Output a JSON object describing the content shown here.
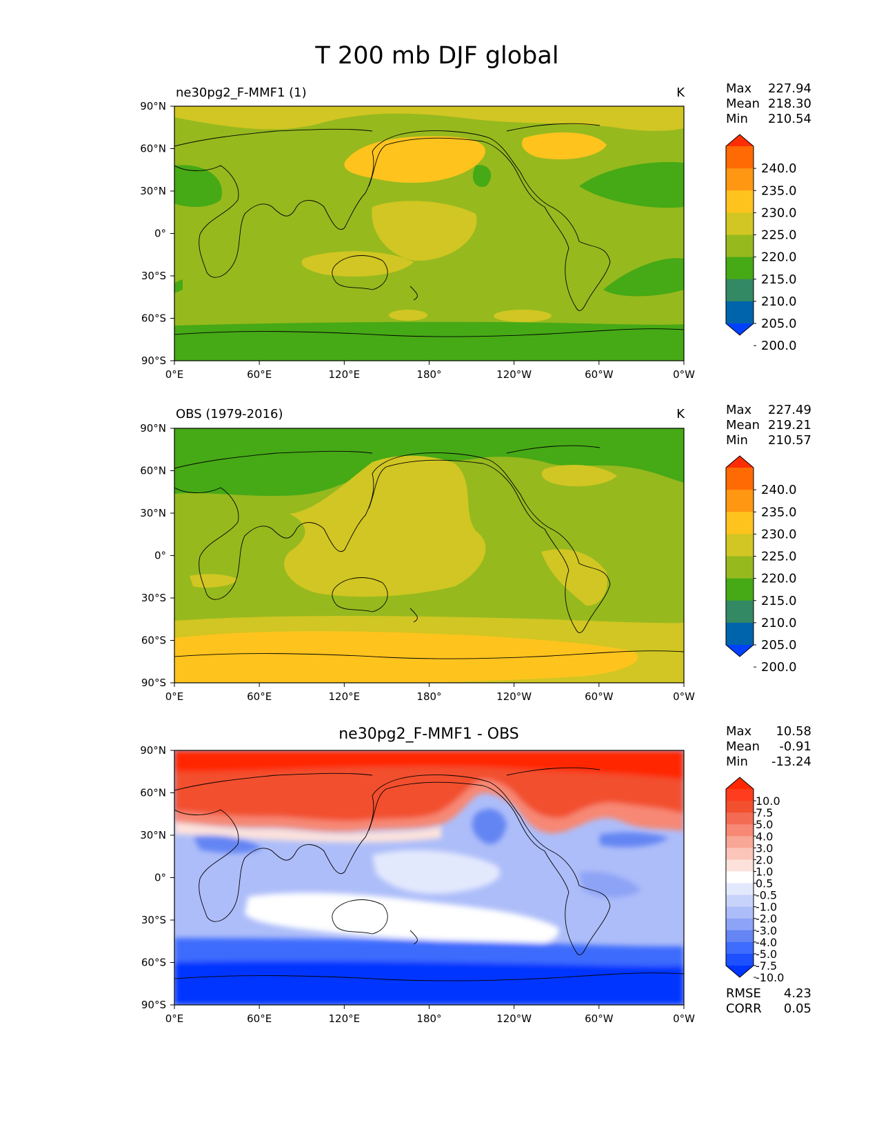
{
  "figure": {
    "title": "T 200 mb DJF global"
  },
  "axes": {
    "lat_ticks": [
      "90°N",
      "60°N",
      "30°N",
      "0°",
      "30°S",
      "60°S",
      "90°S"
    ],
    "lon_ticks": [
      "0°E",
      "60°E",
      "120°E",
      "180°",
      "120°W",
      "60°W",
      "0°W"
    ]
  },
  "colors": {
    "abs_levels": [
      "#0041ff",
      "#0064aa",
      "#328963",
      "#46a916",
      "#96b91e",
      "#d1c623",
      "#ffc31e",
      "#ff9713",
      "#ff6a05",
      "#ff2d05"
    ],
    "diff_levels": [
      "#0035ff",
      "#1d50ff",
      "#3e6cfd",
      "#6485f3",
      "#8da3f6",
      "#adbdf9",
      "#c8d3fb",
      "#e3e9fd",
      "#ffffff",
      "#fde2dc",
      "#fbc5b9",
      "#f8a696",
      "#f68875",
      "#f46b54",
      "#f2502f",
      "#ff3c1e",
      "#ff2800"
    ]
  },
  "chart_data": [
    {
      "type": "heatmap",
      "panel": "model",
      "title_left": "ne30pg2_F-MMF1 (1)",
      "title_right": "K",
      "stats": [
        {
          "label": "Max",
          "value": "227.94"
        },
        {
          "label": "Mean",
          "value": "218.30"
        },
        {
          "label": "Min",
          "value": "210.54"
        }
      ],
      "colorbar_levels": [
        "240.0",
        "235.0",
        "230.0",
        "225.0",
        "220.0",
        "215.0",
        "210.0",
        "205.0",
        "200.0"
      ],
      "xlim": [
        0,
        360
      ],
      "ylim": [
        -90,
        90
      ]
    },
    {
      "type": "heatmap",
      "panel": "obs",
      "title_left": "OBS (1979-2016)",
      "title_right": "K",
      "stats": [
        {
          "label": "Max",
          "value": "227.49"
        },
        {
          "label": "Mean",
          "value": "219.21"
        },
        {
          "label": "Min",
          "value": "210.57"
        }
      ],
      "colorbar_levels": [
        "240.0",
        "235.0",
        "230.0",
        "225.0",
        "220.0",
        "215.0",
        "210.0",
        "205.0",
        "200.0"
      ],
      "xlim": [
        0,
        360
      ],
      "ylim": [
        -90,
        90
      ]
    },
    {
      "type": "heatmap",
      "panel": "diff",
      "title_center": "ne30pg2_F-MMF1 - OBS",
      "stats": [
        {
          "label": "Max",
          "value": "10.58"
        },
        {
          "label": "Mean",
          "value": "-0.91"
        },
        {
          "label": "Min",
          "value": "-13.24"
        }
      ],
      "colorbar_levels": [
        "10.0",
        "7.5",
        "5.0",
        "4.0",
        "3.0",
        "2.0",
        "1.0",
        "0.5",
        "-0.5",
        "-1.0",
        "-2.0",
        "-3.0",
        "-4.0",
        "-5.0",
        "-7.5",
        "-10.0"
      ],
      "metrics": [
        {
          "label": "RMSE",
          "value": "4.23"
        },
        {
          "label": "CORR",
          "value": "0.05"
        }
      ],
      "xlim": [
        0,
        360
      ],
      "ylim": [
        -90,
        90
      ]
    }
  ]
}
